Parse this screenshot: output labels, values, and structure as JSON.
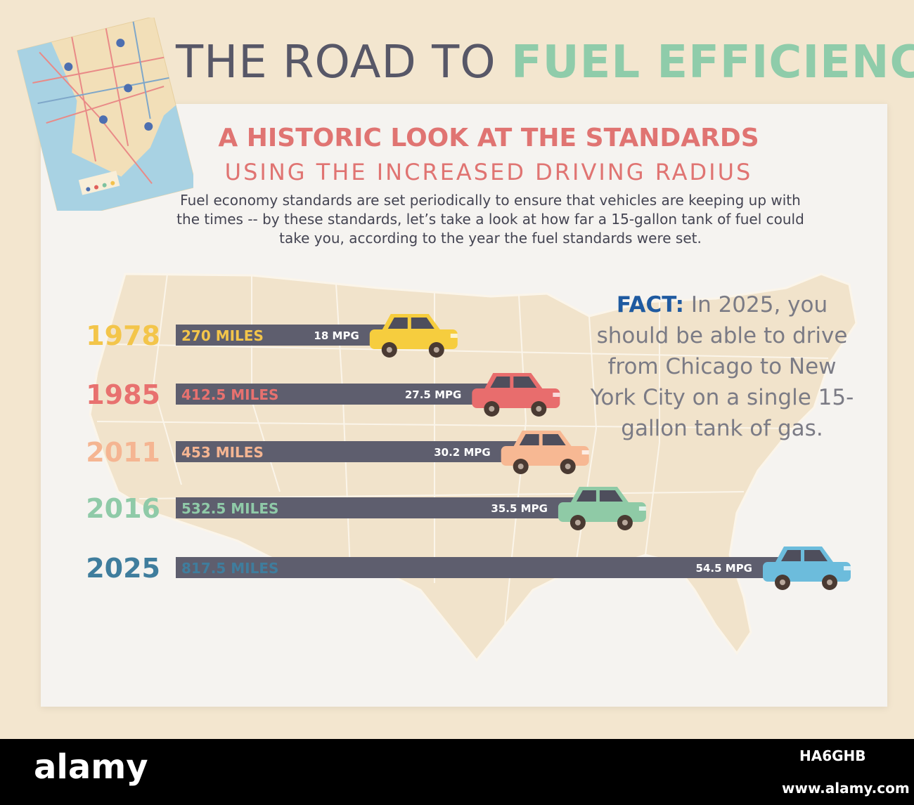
{
  "title": {
    "part1": "THE ROAD TO",
    "part2": "FUEL EFFICIENCY"
  },
  "subtitle": {
    "line1": "A HISTORIC LOOK AT THE STANDARDS",
    "line2": "USING THE INCREASED DRIVING RADIUS"
  },
  "description": "Fuel economy standards are set periodically to ensure that vehicles are keeping up with the times -- by these standards, let’s take a look at how far a 15-gallon tank of fuel could take you, according to the year the fuel standards were set.",
  "fact": {
    "label": "FACT:",
    "text": "In 2025, you should be able to drive from Chicago to New York City on a single 15-gallon tank of gas."
  },
  "colors": {
    "bar": "#5e5e6e",
    "title_accent": "#8fccaa",
    "subtitle": "#e07472",
    "fact_label": "#1f5aa0",
    "map_land": "#f1e3cb",
    "map_border": "#fbf5ea"
  },
  "chart_data": {
    "type": "bar",
    "orientation": "horizontal",
    "title": "",
    "xlabel": "",
    "ylabel": "",
    "categories": [
      "1978",
      "1985",
      "2011",
      "2016",
      "2025"
    ],
    "series": [
      {
        "values": [
          270,
          412.5,
          453,
          532.5,
          817.5
        ]
      }
    ],
    "value_labels": [
      "270 MILES",
      "412.5 MILES",
      "453 MILES",
      "532.5 MILES",
      "817.5 MILES"
    ],
    "mpg": [
      18,
      27.5,
      30.2,
      35.5,
      54.5
    ],
    "mpg_labels": [
      "18 MPG",
      "27.5 MPG",
      "30.2 MPG",
      "35.5 MPG",
      "54.5 MPG"
    ],
    "year_colors": [
      "#f3c54a",
      "#e8716f",
      "#f5b592",
      "#8fcaa8",
      "#3f7d9d"
    ],
    "car_colors": [
      "#f6cd3e",
      "#e86d6d",
      "#f7b893",
      "#8fcaa6",
      "#6cbcdc"
    ],
    "xlim": [
      0,
      817.5
    ],
    "grid": false,
    "legend": "none"
  },
  "footer": {
    "logo": "alamy",
    "image_id": "HA6GHB",
    "site": "www.alamy.com"
  }
}
